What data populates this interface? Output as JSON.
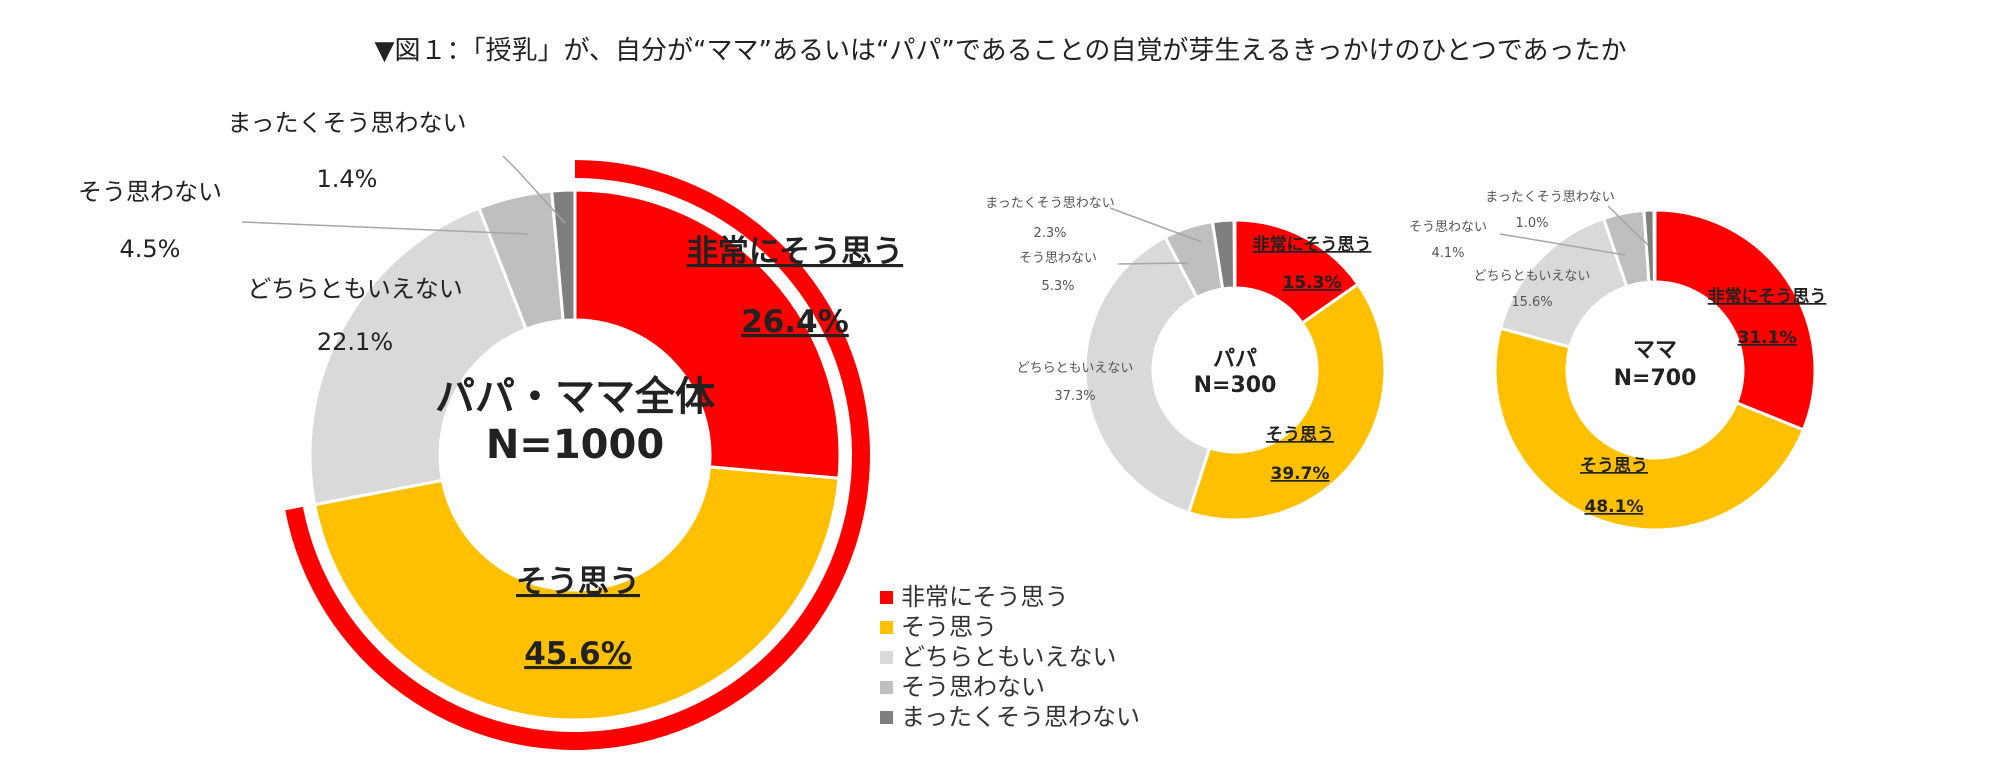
{
  "title": "▼図１：「授乳」が、自分が“ママ”あるいは“パパ”であることの自覚が芽生えるきっかけのひとつであったか",
  "legend": [
    {
      "label": "非常にそう思う",
      "color": "#ff0000"
    },
    {
      "label": "そう思う",
      "color": "#ffc000"
    },
    {
      "label": "どちらともいえない",
      "color": "#d9d9d9"
    },
    {
      "label": "そう思わない",
      "color": "#bfbfbf"
    },
    {
      "label": "まったくそう思わない",
      "color": "#7f7f7f"
    }
  ],
  "chart_data": [
    {
      "type": "donut",
      "center_label": [
        "パパ・ママ全体",
        "N=1000"
      ],
      "categories": [
        "非常にそう思う",
        "そう思う",
        "どちらともいえない",
        "そう思わない",
        "まったくそう思わない"
      ],
      "values": [
        26.4,
        45.6,
        22.1,
        4.5,
        1.4
      ],
      "value_labels": [
        "26.4%",
        "45.6%",
        "22.1%",
        "4.5%",
        "1.4%"
      ],
      "colors": [
        "#ff0000",
        "#ffc000",
        "#d9d9d9",
        "#bfbfbf",
        "#7f7f7f"
      ],
      "outer_ring": {
        "color": "#ff0000",
        "value": 72.0
      }
    },
    {
      "type": "donut",
      "center_label": [
        "パパ",
        "N=300"
      ],
      "categories": [
        "非常にそう思う",
        "そう思う",
        "どちらともいえない",
        "そう思わない",
        "まったくそう思わない"
      ],
      "values": [
        15.3,
        39.7,
        37.3,
        5.3,
        2.3
      ],
      "value_labels": [
        "15.3%",
        "39.7%",
        "37.3%",
        "5.3%",
        "2.3%"
      ],
      "colors": [
        "#ff0000",
        "#ffc000",
        "#d9d9d9",
        "#bfbfbf",
        "#7f7f7f"
      ]
    },
    {
      "type": "donut",
      "center_label": [
        "ママ",
        "N=700"
      ],
      "categories": [
        "非常にそう思う",
        "そう思う",
        "どちらともいえない",
        "そう思わない",
        "まったくそう思わない"
      ],
      "values": [
        31.1,
        48.1,
        15.6,
        4.1,
        1.0
      ],
      "value_labels": [
        "31.1%",
        "48.1%",
        "15.6%",
        "4.1%",
        "1.0%"
      ],
      "colors": [
        "#ff0000",
        "#ffc000",
        "#d9d9d9",
        "#bfbfbf",
        "#7f7f7f"
      ]
    }
  ]
}
